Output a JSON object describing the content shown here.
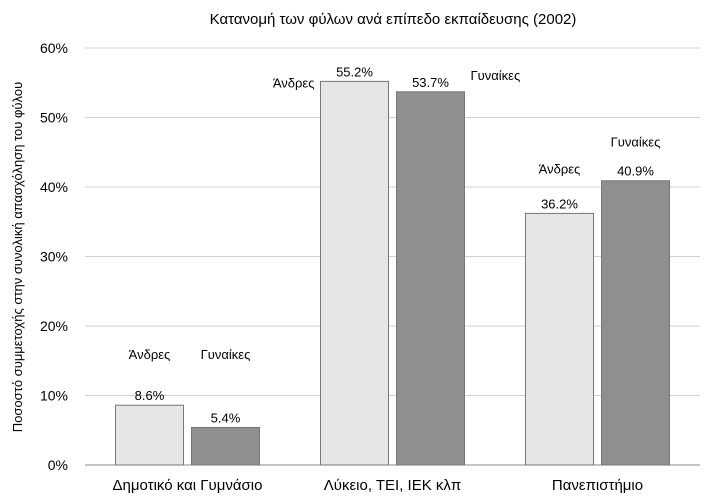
{
  "chart_data": {
    "type": "bar",
    "title": "Κατανομή των φύλων ανά επίπεδο εκπαίδευσης (2002)",
    "xlabel": "",
    "ylabel": "Ποσοστό συμμετοχής στην συνολική απασχόληση του φύλου",
    "ylim": [
      0,
      60
    ],
    "yticks": [
      "0%",
      "10%",
      "20%",
      "30%",
      "40%",
      "50%",
      "60%"
    ],
    "grid": true,
    "categories": [
      "Δημοτικό και Γυμνάσιο",
      "Λύκειο, ΤΕΙ, ΙΕΚ κλπ",
      "Πανεπιστήμιο"
    ],
    "series": [
      {
        "name": "Άνδρες",
        "values": [
          8.6,
          55.2,
          36.2
        ],
        "labels": [
          "8.6%",
          "55.2%",
          "36.2%"
        ],
        "color": "#e6e6e6"
      },
      {
        "name": "Γυναίκες",
        "values": [
          5.4,
          53.7,
          40.9
        ],
        "labels": [
          "5.4%",
          "53.7%",
          "40.9%"
        ],
        "color": "#8f8f8f"
      }
    ]
  }
}
